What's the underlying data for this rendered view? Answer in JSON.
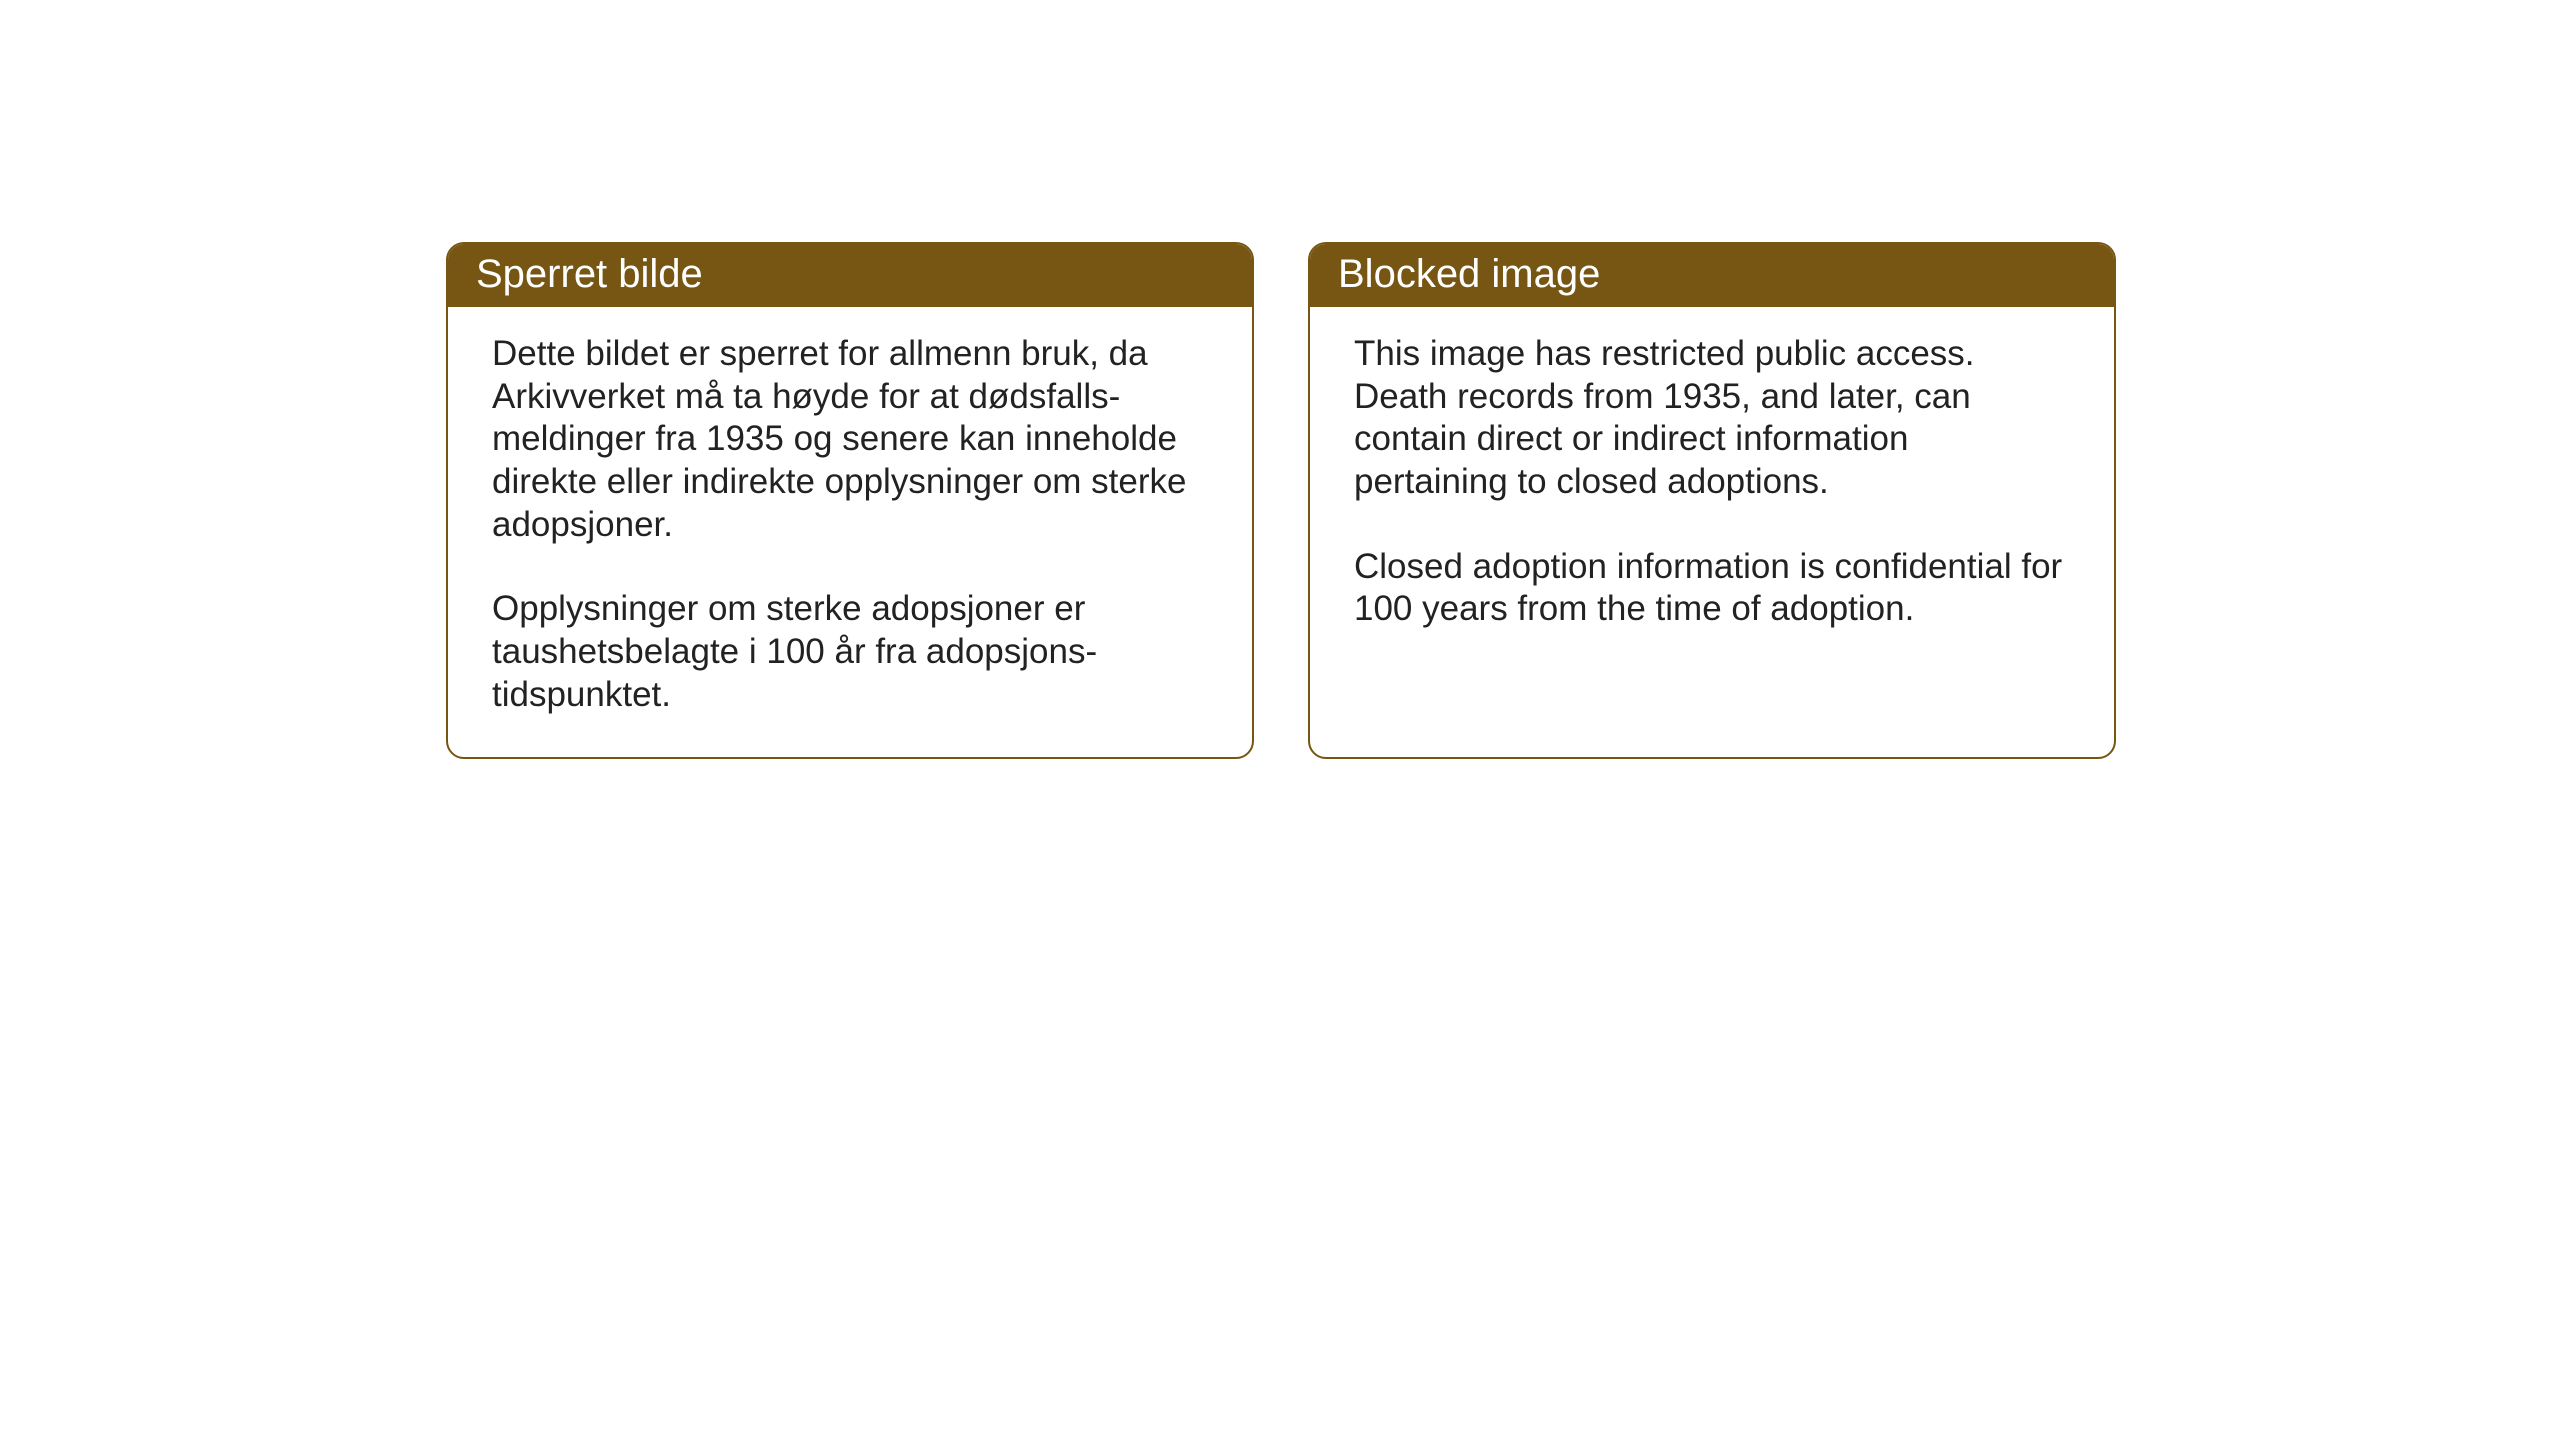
{
  "layout": {
    "background_color": "#ffffff",
    "card_border_color": "#765612",
    "card_header_bg": "#765612",
    "card_header_text_color": "#ffffff",
    "card_body_text_color": "#222222",
    "card_border_radius": 18,
    "header_fontsize": 40,
    "body_fontsize": 35
  },
  "cards": {
    "norwegian": {
      "title": "Sperret bilde",
      "paragraph1": "Dette bildet er sperret for allmenn bruk, da Arkivverket må ta høyde for at dødsfalls-meldinger fra 1935 og senere kan inneholde direkte eller indirekte opplysninger om sterke adopsjoner.",
      "paragraph2": "Opplysninger om sterke adopsjoner er taushetsbelagte i 100 år fra adopsjons-tidspunktet."
    },
    "english": {
      "title": "Blocked image",
      "paragraph1": "This image has restricted public access. Death records from 1935, and later, can contain direct or indirect information pertaining to closed adoptions.",
      "paragraph2": "Closed adoption information is confidential for 100 years from the time of adoption."
    }
  }
}
